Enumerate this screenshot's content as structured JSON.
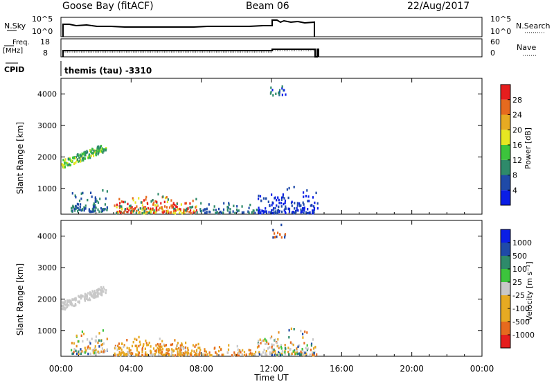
{
  "header": {
    "site": "Goose Bay (fitACF)",
    "beam": "Beam 06",
    "date": "22/Aug/2017"
  },
  "labels": {
    "nsky": "N.Sky",
    "freq_top": "Freq.",
    "freq_unit": "[MHz]",
    "cpid": "CPID",
    "nsearch": "N.Search",
    "nave": "Nave",
    "program": "themis (tau) -3310",
    "slant_range": "Slant Range [km]",
    "time_ut": "Time UT",
    "power_label": "Power [dB]",
    "velocity_label": "Velocity [m s⁻¹]"
  },
  "noise_panel": {
    "left_ticks": [
      "10^5",
      "10^0"
    ],
    "right_ticks": [
      "10^5",
      "10^0"
    ]
  },
  "freq_panel": {
    "left_ticks": [
      "18",
      "8"
    ],
    "right_ticks": [
      "60",
      "0"
    ]
  },
  "chart_data": {
    "type": "heatmap",
    "x_ticks": [
      "00:00",
      "04:00",
      "08:00",
      "12:00",
      "16:00",
      "20:00",
      "00:00"
    ],
    "xlim_hours": [
      0,
      24
    ],
    "ylim_km": [
      180,
      4500
    ],
    "y_ticks": [
      1000,
      2000,
      3000,
      4000
    ],
    "power_colorbar": {
      "ticks": [
        "4",
        "8",
        "12",
        "16",
        "20",
        "24",
        "28"
      ],
      "colors": [
        "#0a1ee6",
        "#1f4aa8",
        "#2e8a6a",
        "#3cc43c",
        "#e6e622",
        "#e6aa22",
        "#e66a1e",
        "#e61e1e"
      ]
    },
    "velocity_colorbar": {
      "ticks": [
        "1000",
        "500",
        "100",
        "25",
        "-25",
        "-100",
        "-500",
        "-1000"
      ],
      "colors": [
        "#0a1ee6",
        "#1f4aa8",
        "#2e8a6a",
        "#3cc43c",
        "#c8c8c8",
        "#e6aa22",
        "#e6aa22",
        "#e66a1e",
        "#e61e1e"
      ]
    },
    "regions": [
      {
        "t0": 0.0,
        "t1": 2.55,
        "r0": 1650,
        "r1": 2420,
        "power_class": [
          3,
          4,
          2
        ],
        "velocity_class": "ground"
      },
      {
        "t0": 0.5,
        "t1": 2.6,
        "r0": 250,
        "r1": 1100,
        "power_class": [
          1,
          2
        ],
        "velocity_class": "mixed"
      },
      {
        "t0": 3.0,
        "t1": 7.7,
        "r0": 200,
        "r1": 850,
        "power_class": [
          2,
          4,
          6,
          7
        ],
        "velocity_class": "negative"
      },
      {
        "t0": 7.7,
        "t1": 11.2,
        "r0": 200,
        "r1": 600,
        "power_class": [
          1,
          2
        ],
        "velocity_class": "negative"
      },
      {
        "t0": 11.2,
        "t1": 14.6,
        "r0": 200,
        "r1": 1150,
        "power_class": [
          0,
          1
        ],
        "velocity_class": "mixed"
      },
      {
        "t0": 11.9,
        "t1": 12.8,
        "r0": 3950,
        "r1": 4420,
        "power_class": [
          0,
          2
        ],
        "velocity_class": "high"
      }
    ]
  }
}
